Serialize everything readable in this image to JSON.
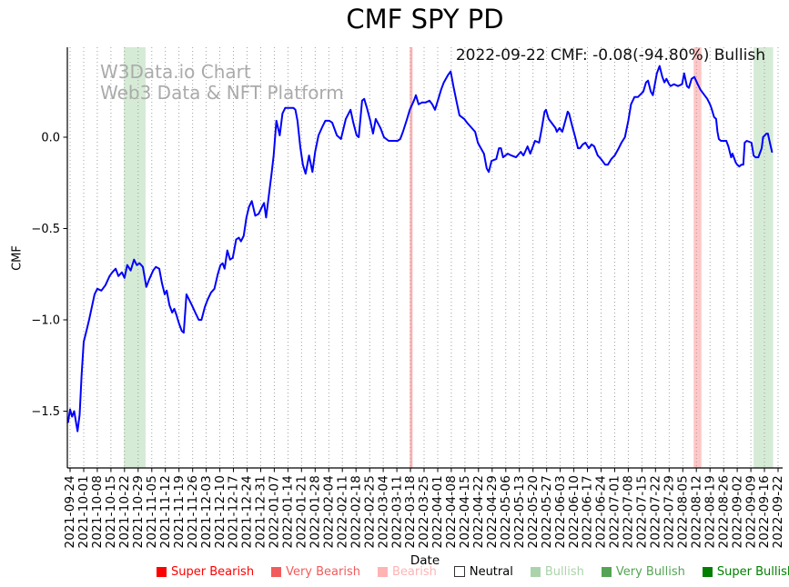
{
  "title": "CMF SPY PD",
  "annotation": "2022-09-22 CMF: -0.08(-94.80%) Bullish",
  "watermark": {
    "line1": "W3Data.io Chart",
    "line2": "Web3 Data & NFT Platform"
  },
  "legend": {
    "items": [
      {
        "label": "Super Bearish",
        "swatch": "#fe0000",
        "text_color": "#fe0000",
        "outlined": false
      },
      {
        "label": "Very Bearish",
        "swatch": "#f25b5b",
        "text_color": "#f25b5b",
        "outlined": false
      },
      {
        "label": "Bearish",
        "swatch": "#ffb3b3",
        "text_color": "#ffb3b3",
        "outlined": false
      },
      {
        "label": "Neutral",
        "swatch": "#ffffff",
        "text_color": "#000000",
        "outlined": true
      },
      {
        "label": "Bullish",
        "swatch": "#abd3ab",
        "text_color": "#abd3ab",
        "outlined": false
      },
      {
        "label": "Very Bullish",
        "swatch": "#55a455",
        "text_color": "#55a455",
        "outlined": false
      },
      {
        "label": "Super Bullish",
        "swatch": "#007f00",
        "text_color": "#007f00",
        "outlined": false
      }
    ]
  },
  "chart_data": {
    "type": "line",
    "title": "CMF SPY PD",
    "xlabel": "Date",
    "ylabel": "CMF",
    "line_color": "#0202fa",
    "grid": "vertical dotted gridline at every weekly tick",
    "legend_position": "bottom",
    "ylim": [
      -1.81,
      0.49
    ],
    "y_ticks": [
      {
        "label": "0.0",
        "value": 0
      },
      {
        "label": "−0.5",
        "value": -0.5
      },
      {
        "label": "−1.0",
        "value": -1.0
      },
      {
        "label": "−1.5",
        "value": -1.5
      }
    ],
    "x_unit": "weeks since first tick (2021-09-24); tick index = week number",
    "x_ticks": [
      "2021-09-24",
      "2021-10-01",
      "2021-10-08",
      "2021-10-15",
      "2021-10-22",
      "2021-10-29",
      "2021-11-05",
      "2021-11-12",
      "2021-11-19",
      "2021-11-26",
      "2021-12-03",
      "2021-12-10",
      "2021-12-17",
      "2021-12-24",
      "2021-12-31",
      "2022-01-07",
      "2022-01-14",
      "2022-01-21",
      "2022-01-28",
      "2022-02-04",
      "2022-02-11",
      "2022-02-18",
      "2022-02-25",
      "2022-03-04",
      "2022-03-11",
      "2022-03-18",
      "2022-03-25",
      "2022-04-01",
      "2022-04-08",
      "2022-04-15",
      "2022-04-22",
      "2022-04-29",
      "2022-05-06",
      "2022-05-13",
      "2022-05-20",
      "2022-05-27",
      "2022-06-03",
      "2022-06-10",
      "2022-06-17",
      "2022-06-24",
      "2022-07-01",
      "2022-07-08",
      "2022-07-15",
      "2022-07-22",
      "2022-07-29",
      "2022-08-05",
      "2022-08-12",
      "2022-08-19",
      "2022-08-26",
      "2022-09-02",
      "2022-09-09",
      "2022-09-16",
      "2022-09-22"
    ],
    "bands": [
      {
        "category": "Bullish",
        "from_week": 3.95,
        "to_week": 5.55,
        "color": "rgba(0,128,0,0.16)"
      },
      {
        "category": "Bearish",
        "from_week": 24.95,
        "to_week": 25.15,
        "color": "rgba(255,0,0,0.30)"
      },
      {
        "category": "Bearish",
        "from_week": 45.8,
        "to_week": 46.37,
        "color": "rgba(255,0,0,0.22)"
      },
      {
        "category": "Bullish",
        "from_week": 50.2,
        "to_week": 51.64,
        "color": "rgba(0,128,0,0.16)"
      }
    ],
    "latest": {
      "date": "2022-09-22",
      "cmf": -0.08,
      "change_pct": "-94.80%",
      "signal": "Bullish"
    },
    "series": [
      {
        "name": "CMF",
        "points": [
          [
            -0.15,
            -1.56
          ],
          [
            0,
            -1.49
          ],
          [
            0.15,
            -1.53
          ],
          [
            0.3,
            -1.5
          ],
          [
            0.55,
            -1.61
          ],
          [
            0.7,
            -1.52
          ],
          [
            0.85,
            -1.3
          ],
          [
            1,
            -1.12
          ],
          [
            1.2,
            -1.06
          ],
          [
            1.4,
            -1
          ],
          [
            1.6,
            -0.93
          ],
          [
            1.8,
            -0.86
          ],
          [
            2,
            -0.83
          ],
          [
            2.3,
            -0.84
          ],
          [
            2.6,
            -0.81
          ],
          [
            2.9,
            -0.76
          ],
          [
            3.1,
            -0.74
          ],
          [
            3.35,
            -0.72
          ],
          [
            3.55,
            -0.76
          ],
          [
            3.8,
            -0.74
          ],
          [
            4,
            -0.77
          ],
          [
            4.2,
            -0.7
          ],
          [
            4.45,
            -0.73
          ],
          [
            4.7,
            -0.67
          ],
          [
            4.9,
            -0.7
          ],
          [
            5.1,
            -0.69
          ],
          [
            5.35,
            -0.71
          ],
          [
            5.6,
            -0.82
          ],
          [
            5.8,
            -0.78
          ],
          [
            6.1,
            -0.73
          ],
          [
            6.3,
            -0.71
          ],
          [
            6.55,
            -0.72
          ],
          [
            6.75,
            -0.8
          ],
          [
            6.95,
            -0.86
          ],
          [
            7.1,
            -0.84
          ],
          [
            7.3,
            -0.92
          ],
          [
            7.5,
            -0.96
          ],
          [
            7.65,
            -0.94
          ],
          [
            7.8,
            -0.97
          ],
          [
            8,
            -1.02
          ],
          [
            8.2,
            -1.06
          ],
          [
            8.35,
            -1.07
          ],
          [
            8.55,
            -0.86
          ],
          [
            8.75,
            -0.89
          ],
          [
            8.95,
            -0.92
          ],
          [
            9.2,
            -0.96
          ],
          [
            9.45,
            -1
          ],
          [
            9.65,
            -1
          ],
          [
            9.9,
            -0.93
          ],
          [
            10.1,
            -0.89
          ],
          [
            10.35,
            -0.85
          ],
          [
            10.6,
            -0.83
          ],
          [
            10.85,
            -0.75
          ],
          [
            11.05,
            -0.7
          ],
          [
            11.2,
            -0.69
          ],
          [
            11.35,
            -0.72
          ],
          [
            11.55,
            -0.62
          ],
          [
            11.75,
            -0.67
          ],
          [
            11.95,
            -0.66
          ],
          [
            12.2,
            -0.56
          ],
          [
            12.4,
            -0.55
          ],
          [
            12.55,
            -0.57
          ],
          [
            12.75,
            -0.54
          ],
          [
            12.95,
            -0.44
          ],
          [
            13.15,
            -0.38
          ],
          [
            13.35,
            -0.35
          ],
          [
            13.6,
            -0.43
          ],
          [
            13.85,
            -0.42
          ],
          [
            14.1,
            -0.38
          ],
          [
            14.25,
            -0.36
          ],
          [
            14.4,
            -0.44
          ],
          [
            14.6,
            -0.32
          ],
          [
            14.8,
            -0.2
          ],
          [
            14.95,
            -0.1
          ],
          [
            15.15,
            0.09
          ],
          [
            15.4,
            0.01
          ],
          [
            15.6,
            0.13
          ],
          [
            15.8,
            0.16
          ],
          [
            16.1,
            0.16
          ],
          [
            16.4,
            0.16
          ],
          [
            16.55,
            0.15
          ],
          [
            16.7,
            0.09
          ],
          [
            16.9,
            -0.05
          ],
          [
            17.1,
            -0.15
          ],
          [
            17.3,
            -0.2
          ],
          [
            17.55,
            -0.1
          ],
          [
            17.8,
            -0.19
          ],
          [
            18,
            -0.08
          ],
          [
            18.25,
            0.01
          ],
          [
            18.55,
            0.06
          ],
          [
            18.75,
            0.09
          ],
          [
            19.05,
            0.09
          ],
          [
            19.25,
            0.08
          ],
          [
            19.6,
            0.01
          ],
          [
            19.9,
            -0.01
          ],
          [
            20.25,
            0.1
          ],
          [
            20.6,
            0.15
          ],
          [
            20.8,
            0.08
          ],
          [
            21.05,
            0.01
          ],
          [
            21.2,
            0
          ],
          [
            21.45,
            0.2
          ],
          [
            21.6,
            0.21
          ],
          [
            21.8,
            0.16
          ],
          [
            22.05,
            0.09
          ],
          [
            22.25,
            0.02
          ],
          [
            22.45,
            0.1
          ],
          [
            22.8,
            0.05
          ],
          [
            23.05,
            0
          ],
          [
            23.4,
            -0.02
          ],
          [
            23.75,
            -0.02
          ],
          [
            24.05,
            -0.02
          ],
          [
            24.25,
            -0.01
          ],
          [
            24.45,
            0.03
          ],
          [
            24.75,
            0.1
          ],
          [
            24.95,
            0.15
          ],
          [
            25.25,
            0.2
          ],
          [
            25.4,
            0.23
          ],
          [
            25.6,
            0.18
          ],
          [
            25.85,
            0.19
          ],
          [
            26.1,
            0.19
          ],
          [
            26.4,
            0.2
          ],
          [
            26.6,
            0.18
          ],
          [
            26.8,
            0.15
          ],
          [
            27.05,
            0.21
          ],
          [
            27.25,
            0.26
          ],
          [
            27.45,
            0.3
          ],
          [
            27.75,
            0.34
          ],
          [
            27.95,
            0.36
          ],
          [
            28.15,
            0.28
          ],
          [
            28.4,
            0.19
          ],
          [
            28.6,
            0.12
          ],
          [
            28.95,
            0.1
          ],
          [
            29.15,
            0.08
          ],
          [
            29.5,
            0.05
          ],
          [
            29.75,
            0.03
          ],
          [
            29.95,
            -0.03
          ],
          [
            30.1,
            -0.05
          ],
          [
            30.4,
            -0.09
          ],
          [
            30.6,
            -0.17
          ],
          [
            30.75,
            -0.19
          ],
          [
            30.95,
            -0.13
          ],
          [
            31.3,
            -0.12
          ],
          [
            31.5,
            -0.06
          ],
          [
            31.65,
            -0.06
          ],
          [
            31.8,
            -0.11
          ],
          [
            32.15,
            -0.09
          ],
          [
            32.4,
            -0.1
          ],
          [
            32.75,
            -0.11
          ],
          [
            33.1,
            -0.08
          ],
          [
            33.3,
            -0.1
          ],
          [
            33.6,
            -0.05
          ],
          [
            33.8,
            -0.09
          ],
          [
            34.15,
            -0.02
          ],
          [
            34.45,
            -0.03
          ],
          [
            34.65,
            0.05
          ],
          [
            34.85,
            0.14
          ],
          [
            34.95,
            0.15
          ],
          [
            35.15,
            0.1
          ],
          [
            35.45,
            0.07
          ],
          [
            35.65,
            0.05
          ],
          [
            35.75,
            0.03
          ],
          [
            35.95,
            0.05
          ],
          [
            36.15,
            0.03
          ],
          [
            36.45,
            0.11
          ],
          [
            36.55,
            0.14
          ],
          [
            36.65,
            0.13
          ],
          [
            36.85,
            0.07
          ],
          [
            37.1,
            0
          ],
          [
            37.3,
            -0.06
          ],
          [
            37.45,
            -0.06
          ],
          [
            37.65,
            -0.04
          ],
          [
            37.85,
            -0.03
          ],
          [
            38.1,
            -0.06
          ],
          [
            38.3,
            -0.04
          ],
          [
            38.5,
            -0.05
          ],
          [
            38.75,
            -0.1
          ],
          [
            39,
            -0.12
          ],
          [
            39.3,
            -0.15
          ],
          [
            39.5,
            -0.15
          ],
          [
            39.75,
            -0.12
          ],
          [
            40,
            -0.1
          ],
          [
            40.15,
            -0.08
          ],
          [
            40.3,
            -0.06
          ],
          [
            40.5,
            -0.03
          ],
          [
            40.75,
            0
          ],
          [
            41,
            0.09
          ],
          [
            41.2,
            0.18
          ],
          [
            41.45,
            0.22
          ],
          [
            41.7,
            0.22
          ],
          [
            42.1,
            0.25
          ],
          [
            42.3,
            0.3
          ],
          [
            42.45,
            0.31
          ],
          [
            42.65,
            0.25
          ],
          [
            42.8,
            0.23
          ],
          [
            43.1,
            0.35
          ],
          [
            43.3,
            0.39
          ],
          [
            43.5,
            0.33
          ],
          [
            43.65,
            0.3
          ],
          [
            43.8,
            0.32
          ],
          [
            44,
            0.29
          ],
          [
            44.1,
            0.28
          ],
          [
            44.35,
            0.29
          ],
          [
            44.65,
            0.28
          ],
          [
            44.95,
            0.29
          ],
          [
            45.1,
            0.35
          ],
          [
            45.3,
            0.28
          ],
          [
            45.45,
            0.27
          ],
          [
            45.65,
            0.32
          ],
          [
            45.85,
            0.33
          ],
          [
            46.1,
            0.29
          ],
          [
            46.3,
            0.26
          ],
          [
            46.5,
            0.24
          ],
          [
            46.8,
            0.21
          ],
          [
            47,
            0.18
          ],
          [
            47.1,
            0.16
          ],
          [
            47.3,
            0.11
          ],
          [
            47.45,
            0.1
          ],
          [
            47.55,
            0.03
          ],
          [
            47.65,
            -0.01
          ],
          [
            47.8,
            -0.02
          ],
          [
            48.2,
            -0.02
          ],
          [
            48.35,
            -0.05
          ],
          [
            48.55,
            -0.11
          ],
          [
            48.65,
            -0.09
          ],
          [
            48.9,
            -0.14
          ],
          [
            49,
            -0.15
          ],
          [
            49.15,
            -0.16
          ],
          [
            49.3,
            -0.15
          ],
          [
            49.45,
            -0.15
          ],
          [
            49.55,
            -0.03
          ],
          [
            49.7,
            -0.02
          ],
          [
            50.05,
            -0.03
          ],
          [
            50.2,
            -0.1
          ],
          [
            50.35,
            -0.11
          ],
          [
            50.55,
            -0.11
          ],
          [
            50.8,
            -0.06
          ],
          [
            50.9,
            0
          ],
          [
            51.15,
            0.02
          ],
          [
            51.25,
            0.02
          ],
          [
            51.4,
            -0.03
          ],
          [
            51.55,
            -0.08
          ]
        ]
      }
    ]
  }
}
